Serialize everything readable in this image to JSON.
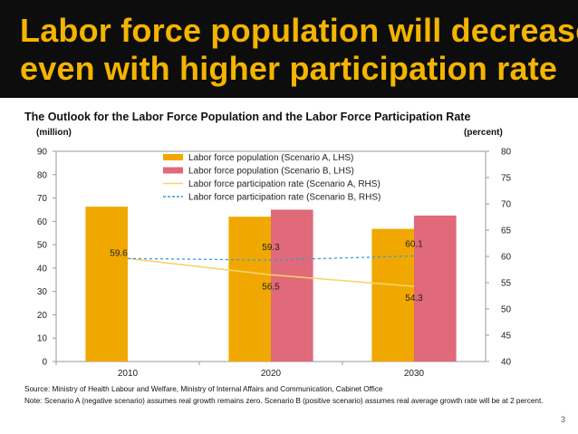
{
  "slide": {
    "title_line1": "Labor force population will decrease",
    "title_line2": "even with higher participation rate",
    "subtitle": "The Outlook for the Labor Force Population and the Labor Force Participation Rate",
    "left_unit": "(million)",
    "right_unit": "(percent)",
    "source_line1": "Source: Ministry of Health Labour and Welfare, Ministry of Internal Affairs and Communication, Cabinet Office",
    "source_line2": "Note: Scenario A (negative scenario) assumes real growth remains zero. Scenario B (positive scenario) assumes real average growth rate will be at 2 percent.",
    "page_number": "3"
  },
  "colors": {
    "title_bg": "#0d0d0d",
    "title_text": "#f4b400",
    "scenario_a_bar": "#f0a800",
    "scenario_b_bar": "#e0697a",
    "scenario_a_line": "#f7d36b",
    "scenario_b_line": "#3a9ad9"
  },
  "chart_data": {
    "type": "bar",
    "categories": [
      "2010",
      "2020",
      "2030"
    ],
    "series": [
      {
        "name": "Labor force population (Scenario A, LHS)",
        "kind": "bar",
        "axis": "left",
        "values": [
          66.3,
          62.0,
          56.8
        ]
      },
      {
        "name": "Labor force population (Scenario B, LHS)",
        "kind": "bar",
        "axis": "left",
        "values": [
          null,
          65.0,
          62.5
        ]
      },
      {
        "name": "Labor force participation rate (Scenario A, RHS)",
        "kind": "line",
        "axis": "right",
        "values": [
          59.6,
          56.5,
          54.3
        ]
      },
      {
        "name": "Labor force participation rate (Scenario B, RHS)",
        "kind": "line",
        "axis": "right",
        "dashed": true,
        "values": [
          59.6,
          59.3,
          60.1
        ]
      }
    ],
    "data_labels": {
      "scenario_a_rate": [
        "59.6",
        "56.5",
        "54.3"
      ],
      "scenario_b_rate": [
        "59.3",
        "60.1"
      ]
    },
    "y_left": {
      "min": 0,
      "max": 90,
      "ticks": [
        "0",
        "10",
        "20",
        "30",
        "40",
        "50",
        "60",
        "70",
        "80",
        "90"
      ]
    },
    "y_right": {
      "min": 40,
      "max": 80,
      "ticks": [
        "40",
        "45",
        "50",
        "55",
        "60",
        "65",
        "70",
        "75",
        "80"
      ]
    },
    "legend_position": "top-center",
    "grid": false
  }
}
